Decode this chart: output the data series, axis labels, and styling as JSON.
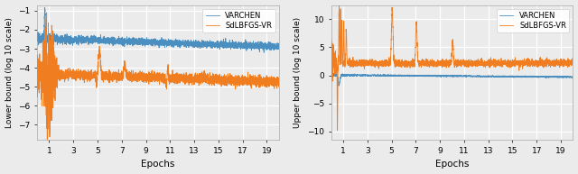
{
  "left_ylabel": "Lower bound (log 10 scale)",
  "right_ylabel": "Upper bound (log 10 scale)",
  "xlabel": "Epochs",
  "left_ylim": [
    -7.8,
    -0.7
  ],
  "right_ylim": [
    -11.5,
    12.5
  ],
  "left_yticks": [
    -7,
    -6,
    -5,
    -4,
    -3,
    -2,
    -1
  ],
  "right_yticks": [
    -10,
    -5,
    0,
    5,
    10
  ],
  "xticks": [
    1,
    3,
    5,
    7,
    9,
    11,
    13,
    15,
    17,
    19
  ],
  "n_points": 4000,
  "max_epoch": 20,
  "varchen_color": "#4A8FC0",
  "sdlbfgs_color": "#F07D20",
  "legend_labels": [
    "VARCHEN",
    "SdLBFGS-VR"
  ],
  "bg_color": "#EBEBEB",
  "grid_color": "white",
  "linewidth": 0.6
}
